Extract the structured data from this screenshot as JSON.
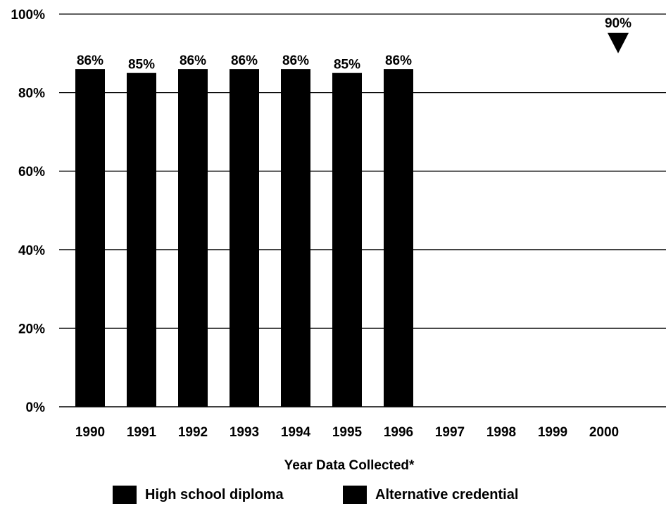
{
  "chart_data": {
    "type": "bar",
    "categories": [
      "1990",
      "1991",
      "1992",
      "1993",
      "1994",
      "1995",
      "1996",
      "1997",
      "1998",
      "1999",
      "2000"
    ],
    "series": [
      {
        "name": "High school diploma",
        "values": [
          86,
          85,
          86,
          86,
          86,
          85,
          86,
          null,
          null,
          null,
          null
        ]
      },
      {
        "name": "Alternative credential",
        "values": [
          null,
          null,
          null,
          null,
          null,
          null,
          null,
          null,
          null,
          null,
          null
        ]
      }
    ],
    "data_labels": [
      "86%",
      "85%",
      "86%",
      "86%",
      "86%",
      "85%",
      "86%"
    ],
    "target": {
      "category": "2000",
      "value": 90,
      "label": "90%"
    },
    "y_ticks": [
      {
        "value": 0,
        "label": "0%"
      },
      {
        "value": 20,
        "label": "20%"
      },
      {
        "value": 40,
        "label": "40%"
      },
      {
        "value": 60,
        "label": "60%"
      },
      {
        "value": 80,
        "label": "80%"
      },
      {
        "value": 100,
        "label": "100%"
      }
    ],
    "ylim": [
      0,
      100
    ],
    "xlabel": "Year Data Collected*",
    "ylabel": "",
    "grid": true,
    "legend_position": "bottom",
    "bar_color": "#000000"
  },
  "legend": [
    {
      "label": "High school diploma",
      "color": "#000000"
    },
    {
      "label": "Alternative credential",
      "color": "#000000"
    }
  ]
}
